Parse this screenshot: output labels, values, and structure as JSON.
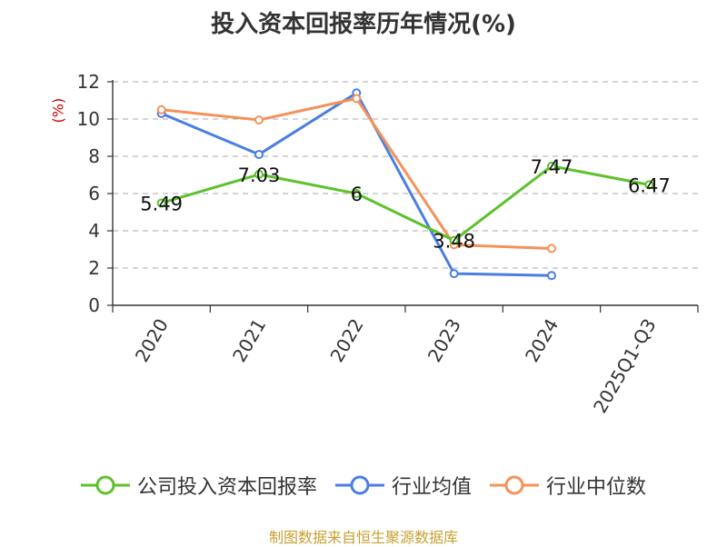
{
  "chart_data": {
    "type": "line",
    "title": "投入资本回报率历年情况(%)",
    "unit_label": "(%)",
    "categories": [
      "2020",
      "2021",
      "2022",
      "2023",
      "2024",
      "2025Q1-Q3"
    ],
    "ylim": [
      0,
      12
    ],
    "yticks": [
      0,
      2,
      4,
      6,
      8,
      10,
      12
    ],
    "grid": true,
    "legend_position": "bottom",
    "series": [
      {
        "name": "公司投入资本回报率",
        "color": "#5cc22a",
        "values": [
          5.49,
          7.03,
          6,
          3.48,
          7.47,
          6.47
        ],
        "labels": [
          "5.49",
          "7.03",
          "6",
          "3.48",
          "7.47",
          "6.47"
        ]
      },
      {
        "name": "行业均值",
        "color": "#4a7fe0",
        "values": [
          10.3,
          8.1,
          11.4,
          1.7,
          1.6,
          null
        ]
      },
      {
        "name": "行业中位数",
        "color": "#f5915a",
        "values": [
          10.5,
          9.95,
          11.1,
          3.25,
          3.05,
          null
        ]
      }
    ]
  },
  "source": "制图数据来自恒生聚源数据库"
}
